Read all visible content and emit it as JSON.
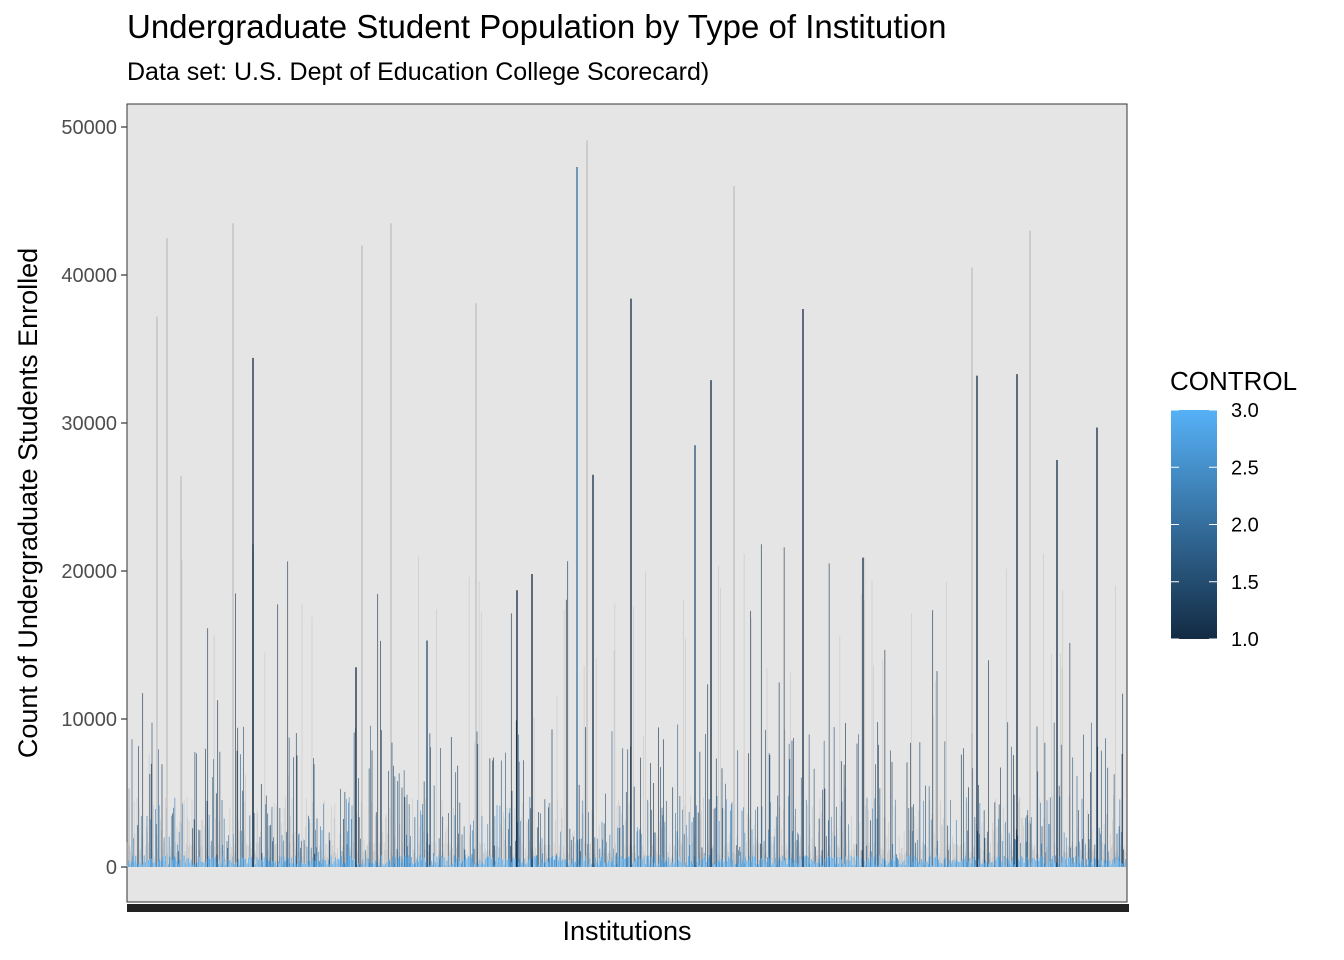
{
  "title": "Undergraduate Student Population by Type of Institution",
  "subtitle": "Data set: U.S. Dept of Education College Scorecard)",
  "chart_data": {
    "type": "bar",
    "title": "Undergraduate Student Population by Type of Institution",
    "subtitle": "Data set: U.S. Dept of Education College Scorecard)",
    "xlabel": "Institutions",
    "ylabel": "Count of Undergraduate Students Enrolled",
    "ylim": [
      -2500,
      52000
    ],
    "yticks": [
      0,
      10000,
      20000,
      30000,
      40000,
      50000
    ],
    "ytick_labels": [
      "0",
      "10000",
      "20000",
      "30000",
      "40000",
      "50000"
    ],
    "x_tick_labels": "unreadable (overplotted, one per institution)",
    "grid": false,
    "fill_variable": "CONTROL",
    "legend": {
      "title": "CONTROL",
      "type": "colorbar",
      "placement": "right",
      "range": [
        1.0,
        3.0
      ],
      "ticks": [
        "1.0",
        "1.5",
        "2.0",
        "2.5",
        "3.0"
      ],
      "low_color": "#132B43",
      "high_color": "#56B1F7"
    },
    "note": "Thousands of bars, one per institution; values listed are the visually prominent peaks (approximate) plus a generated background of small enrollments.",
    "highlights": [
      {
        "x_pos": 0.002,
        "value": 5300,
        "control": 3
      },
      {
        "x_pos": 0.03,
        "value": 37200,
        "control": 2.5
      },
      {
        "x_pos": 0.04,
        "value": 42500,
        "control": 2.5
      },
      {
        "x_pos": 0.054,
        "value": 26400,
        "control": 2.5
      },
      {
        "x_pos": 0.106,
        "value": 43500,
        "control": 2.5
      },
      {
        "x_pos": 0.126,
        "value": 34400,
        "control": 1
      },
      {
        "x_pos": 0.126,
        "value": 21800,
        "control": 1
      },
      {
        "x_pos": 0.235,
        "value": 42000,
        "control": 2.5
      },
      {
        "x_pos": 0.264,
        "value": 43500,
        "control": 2.5
      },
      {
        "x_pos": 0.229,
        "value": 13500,
        "control": 1
      },
      {
        "x_pos": 0.3,
        "value": 15300,
        "control": 1.5
      },
      {
        "x_pos": 0.349,
        "value": 38100,
        "control": 2.5
      },
      {
        "x_pos": 0.39,
        "value": 18700,
        "control": 1
      },
      {
        "x_pos": 0.405,
        "value": 19800,
        "control": 1
      },
      {
        "x_pos": 0.45,
        "value": 47300,
        "control": 2
      },
      {
        "x_pos": 0.46,
        "value": 49100,
        "control": 2.5
      },
      {
        "x_pos": 0.466,
        "value": 26500,
        "control": 1
      },
      {
        "x_pos": 0.504,
        "value": 38400,
        "control": 1
      },
      {
        "x_pos": 0.568,
        "value": 28500,
        "control": 1.5
      },
      {
        "x_pos": 0.584,
        "value": 32900,
        "control": 1
      },
      {
        "x_pos": 0.607,
        "value": 46000,
        "control": 2.5
      },
      {
        "x_pos": 0.676,
        "value": 37700,
        "control": 1
      },
      {
        "x_pos": 0.736,
        "value": 20900,
        "control": 1
      },
      {
        "x_pos": 0.85,
        "value": 33200,
        "control": 1
      },
      {
        "x_pos": 0.845,
        "value": 40500,
        "control": 2.5
      },
      {
        "x_pos": 0.903,
        "value": 43000,
        "control": 2.5
      },
      {
        "x_pos": 0.89,
        "value": 33300,
        "control": 1
      },
      {
        "x_pos": 0.93,
        "value": 27500,
        "control": 1
      },
      {
        "x_pos": 0.97,
        "value": 29700,
        "control": 1
      }
    ]
  }
}
